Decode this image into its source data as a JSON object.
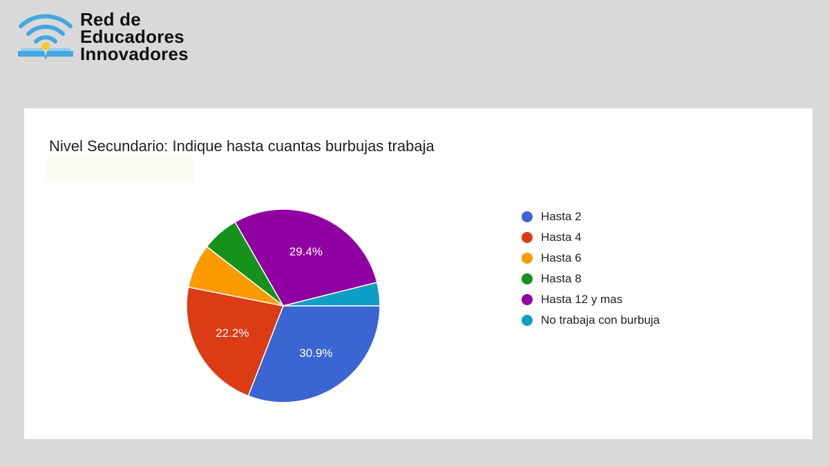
{
  "brand": {
    "lines": [
      "Red de",
      "Educadores",
      "Innovadores"
    ],
    "icon": "wifi-book-icon"
  },
  "chart_data": {
    "type": "pie",
    "title": "Nivel Secundario: Indique hasta cuantas burbujas trabaja",
    "slices": [
      {
        "name": "Hasta 2",
        "value": 30.9,
        "color": "#3b66d2",
        "label": "30.9%"
      },
      {
        "name": "Hasta 4",
        "value": 22.2,
        "color": "#dc3c13",
        "label": "22.2%"
      },
      {
        "name": "Hasta 6",
        "value": 7.4,
        "color": "#fb9b00",
        "label": ""
      },
      {
        "name": "Hasta 8",
        "value": 6.2,
        "color": "#15911c",
        "label": ""
      },
      {
        "name": "Hasta 12 y mas",
        "value": 29.4,
        "color": "#9000a0",
        "label": "29.4%"
      },
      {
        "name": "No trabaja con burbuja",
        "value": 3.9,
        "color": "#0f9ec4",
        "label": ""
      }
    ],
    "legend_position": "right"
  }
}
